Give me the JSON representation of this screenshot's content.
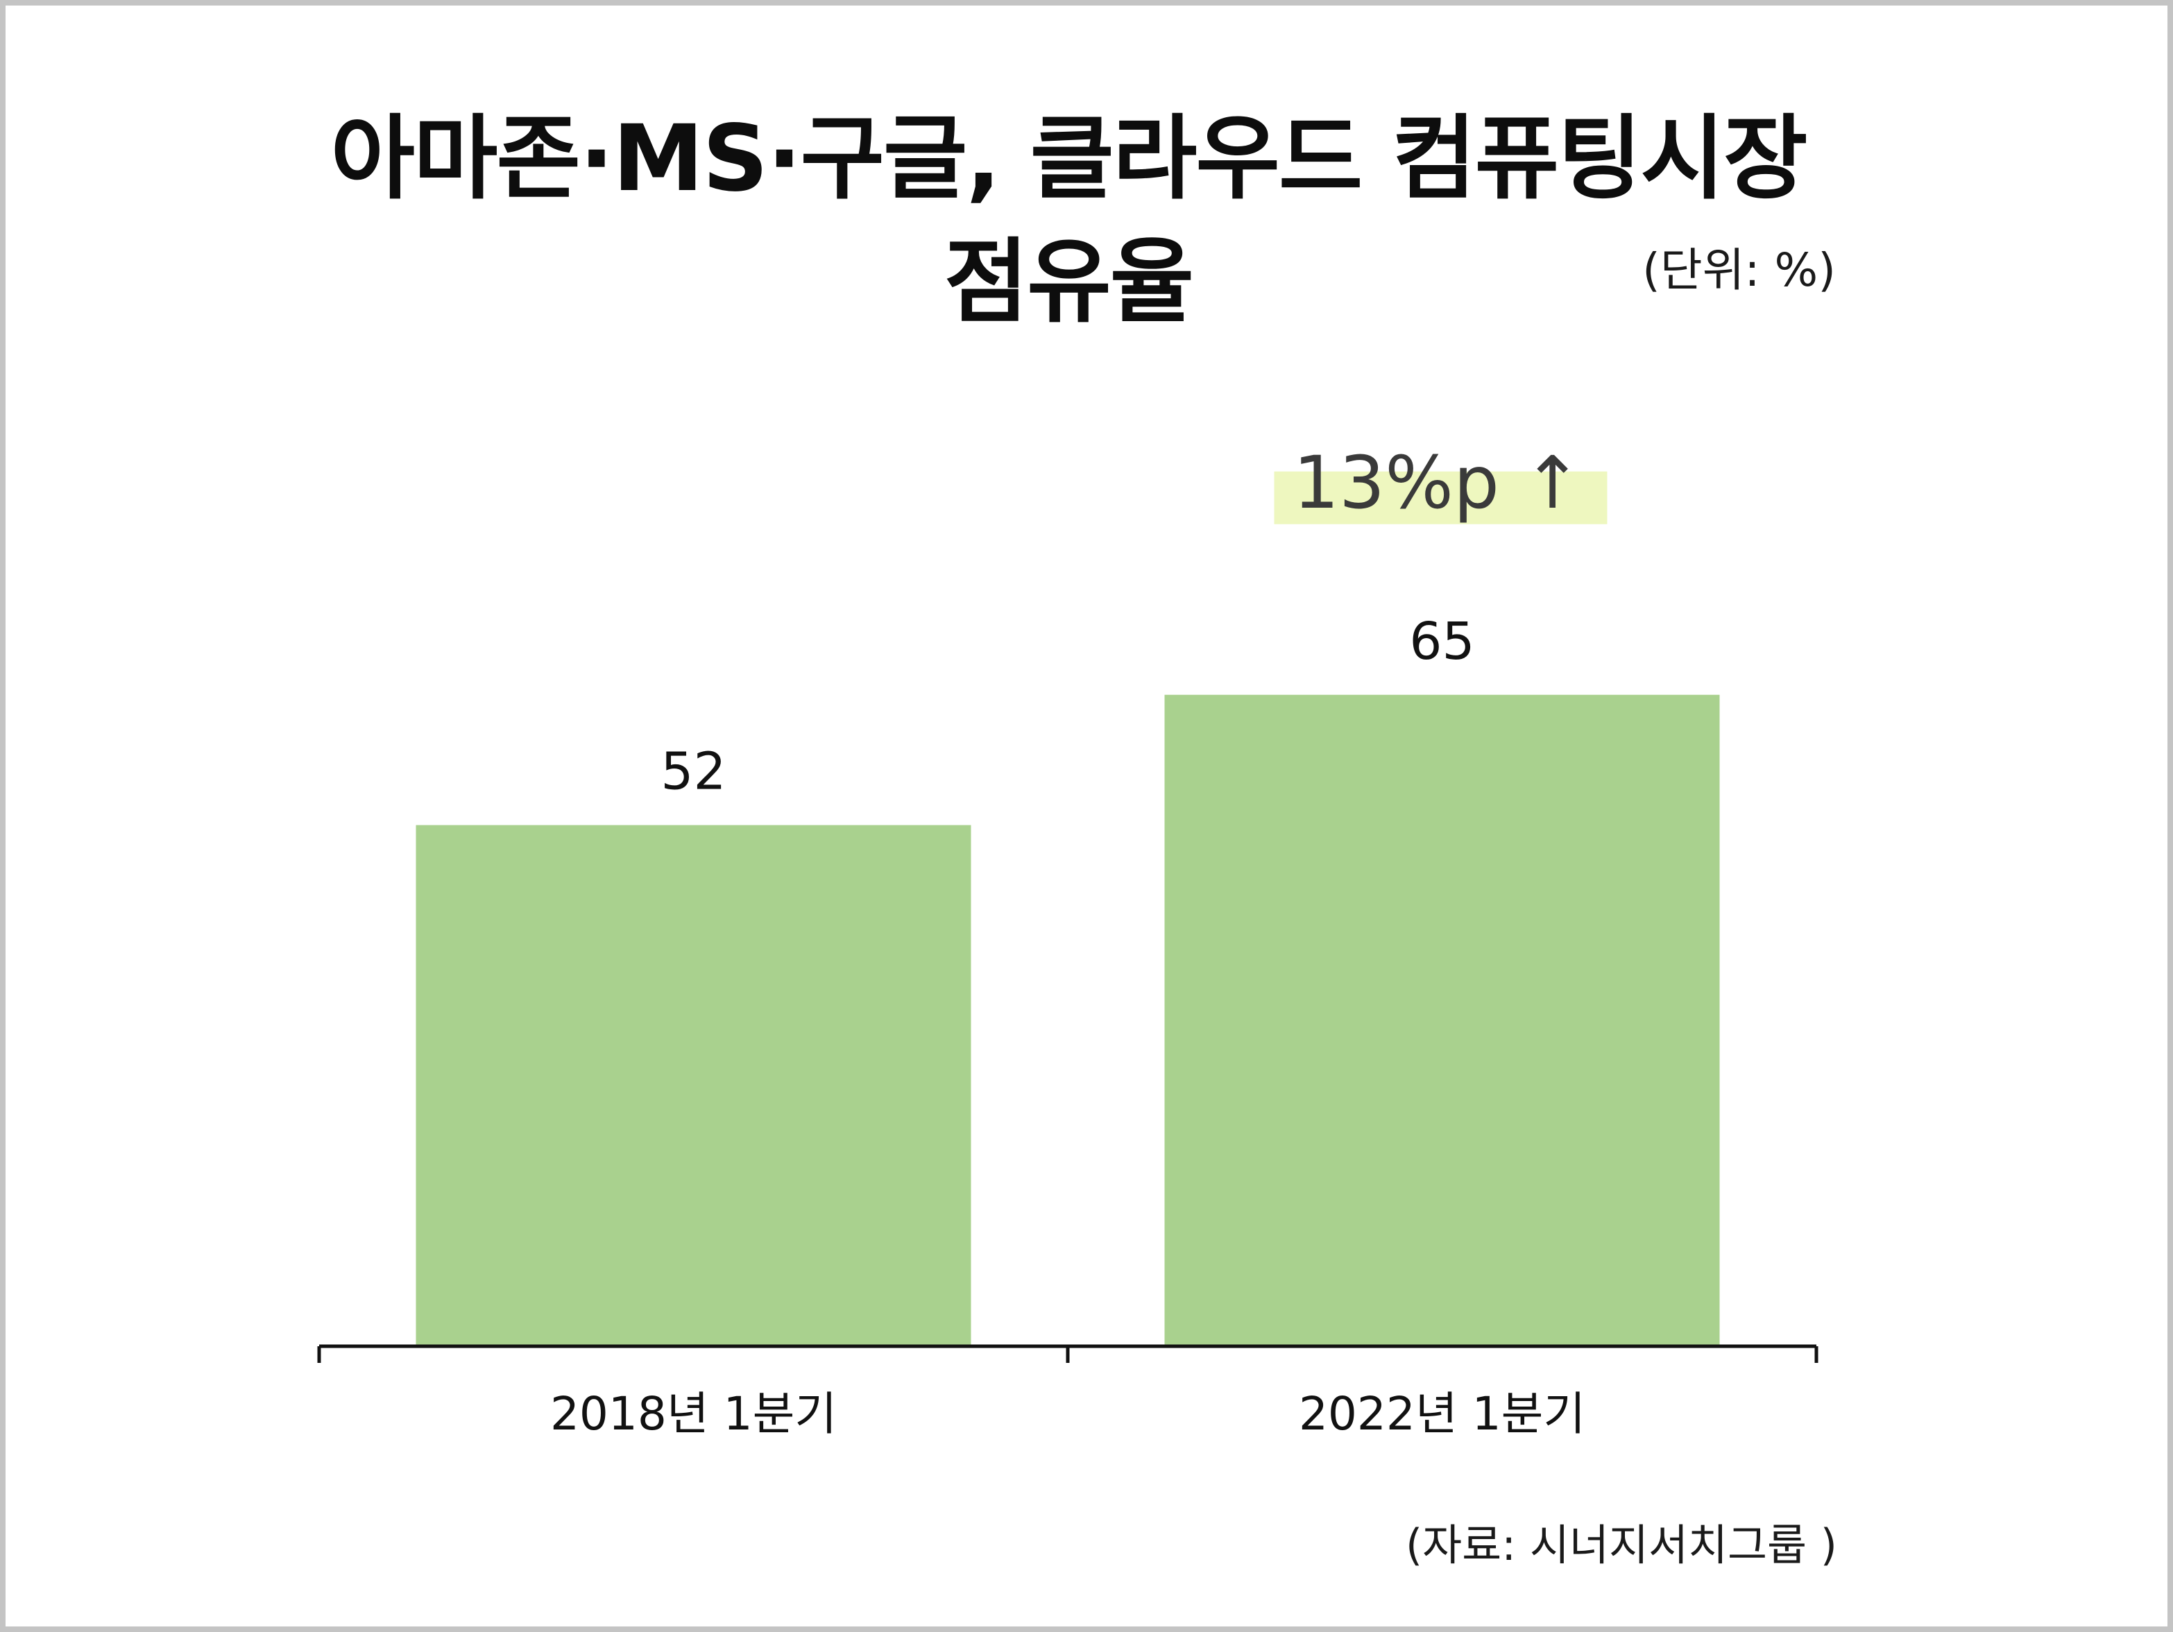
{
  "chart_data": {
    "type": "bar",
    "title": "아마존·MS·구글, 클라우드 컴퓨팅시장 점유율",
    "unit_note": "(단위: %)",
    "categories": [
      "2018년 1분기",
      "2022년 1분기"
    ],
    "values": [
      52,
      65
    ],
    "value_labels": [
      "52",
      "65"
    ],
    "annotation": "13%p ↑",
    "source": "(자료: 시너지서치그룹 )",
    "ylim": [
      0,
      100
    ],
    "grid": false,
    "legend": "none",
    "colors": {
      "bar": "#a9d18e",
      "annotation_highlight": "#eef7bf",
      "axis": "#111111",
      "frame": "#c4c4c4"
    }
  }
}
